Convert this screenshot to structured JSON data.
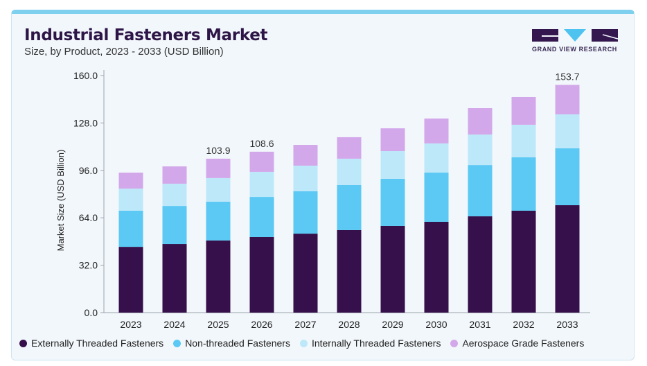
{
  "title": "Industrial Fasteners Market",
  "subtitle": "Size, by Product, 2023 - 2033 (USD Billion)",
  "logo_text": "GRAND VIEW RESEARCH",
  "chart_data": {
    "type": "bar",
    "stacked": true,
    "ylabel": "Market Size (USD Billion)",
    "xlabel": "",
    "ylim": [
      0,
      160
    ],
    "yticks": [
      "0.0",
      "32.0",
      "64.0",
      "96.0",
      "128.0",
      "160.0"
    ],
    "categories": [
      "2023",
      "2024",
      "2025",
      "2026",
      "2027",
      "2028",
      "2029",
      "2030",
      "2031",
      "2032",
      "2033"
    ],
    "series": [
      {
        "name": "Externally Threaded Fasteners",
        "color": "#35104a",
        "values": [
          44.4,
          46.3,
          48.7,
          51.0,
          53.3,
          55.7,
          58.5,
          61.3,
          65.0,
          68.8,
          72.5
        ]
      },
      {
        "name": "Non-threaded Fasteners",
        "color": "#5bc9f3",
        "values": [
          24.4,
          25.7,
          26.2,
          27.1,
          28.6,
          30.4,
          31.8,
          33.2,
          34.6,
          36.0,
          38.4
        ]
      },
      {
        "name": "Internally Threaded Fasteners",
        "color": "#bde8f9",
        "values": [
          14.9,
          15.0,
          15.9,
          16.9,
          17.3,
          17.8,
          18.7,
          19.7,
          20.6,
          22.0,
          22.9
        ]
      },
      {
        "name": "Aerospace Grade Fasteners",
        "color": "#d3a8ea",
        "values": [
          10.8,
          11.7,
          13.1,
          13.6,
          14.0,
          14.5,
          15.4,
          16.8,
          17.8,
          18.7,
          19.9
        ]
      }
    ],
    "data_labels": {
      "2025": "103.9",
      "2026": "108.6",
      "2033": "153.7"
    },
    "legend_position": "bottom",
    "grid": false
  }
}
